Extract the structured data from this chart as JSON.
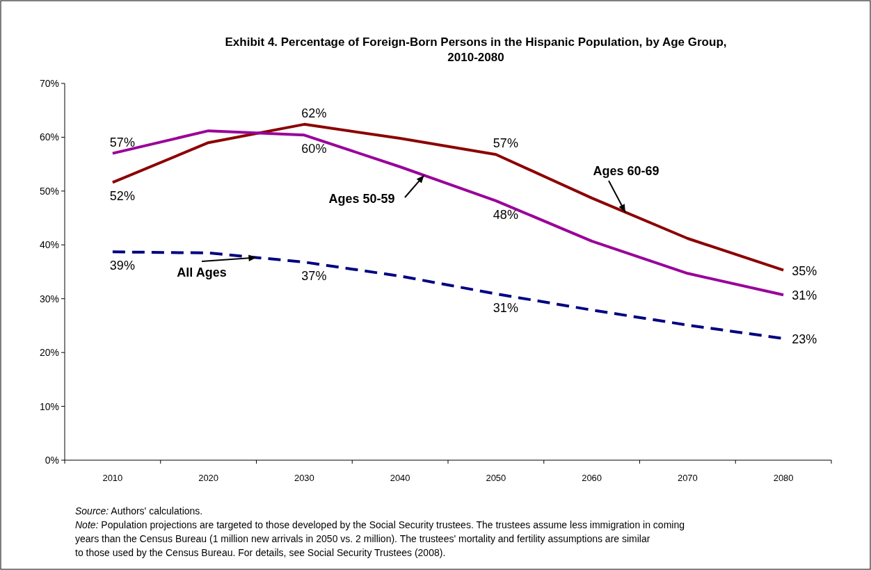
{
  "chart_data": {
    "type": "line",
    "title": "Exhibit 4. Percentage of Foreign-Born Persons in the Hispanic Population, by Age Group, 2010-2080",
    "categories": [
      "2010",
      "2020",
      "2030",
      "2040",
      "2050",
      "2060",
      "2070",
      "2080"
    ],
    "series": [
      {
        "name": "Ages 60-69",
        "color": "#8b0000",
        "line_style": "solid",
        "values": [
          51.6,
          59.0,
          62.4,
          59.8,
          56.8,
          48.7,
          41.2,
          35.3
        ],
        "value_labels": [
          "52%",
          null,
          "62%",
          null,
          "57%",
          null,
          null,
          "35%"
        ]
      },
      {
        "name": "Ages 50-59",
        "color": "#990099",
        "line_style": "solid",
        "values": [
          57.0,
          61.2,
          60.4,
          54.5,
          48.2,
          40.7,
          34.7,
          30.7
        ],
        "value_labels": [
          "57%",
          null,
          "60%",
          null,
          "48%",
          null,
          null,
          "31%"
        ]
      },
      {
        "name": "All Ages",
        "color": "#000080",
        "line_style": "dashed",
        "values": [
          38.7,
          38.5,
          36.8,
          34.2,
          30.9,
          27.9,
          25.1,
          22.6
        ],
        "value_labels": [
          "39%",
          null,
          "37%",
          null,
          "31%",
          null,
          null,
          "23%"
        ]
      }
    ],
    "ylim": [
      0,
      70
    ],
    "yticks": [
      {
        "value": 0,
        "label": "0%"
      },
      {
        "value": 10,
        "label": "10%"
      },
      {
        "value": 20,
        "label": "20%"
      },
      {
        "value": 30,
        "label": "30%"
      },
      {
        "value": 40,
        "label": "40%"
      },
      {
        "value": 50,
        "label": "50%"
      },
      {
        "value": 60,
        "label": "60%"
      },
      {
        "value": 70,
        "label": "70%"
      }
    ],
    "grid": false,
    "legend": false,
    "marker": "none",
    "annotations": [
      "Source: Authors' calculations.",
      "Note: Population projections are targeted to those developed by the Social Security trustees. The trustees assume less immigration in coming years than the Census Bureau (1 million new arrivals in 2050 vs. 2 million). The trustees' mortality and fertility assumptions are similar to those used by the Census Bureau. For details, see Social Security Trustees (2008)."
    ]
  }
}
